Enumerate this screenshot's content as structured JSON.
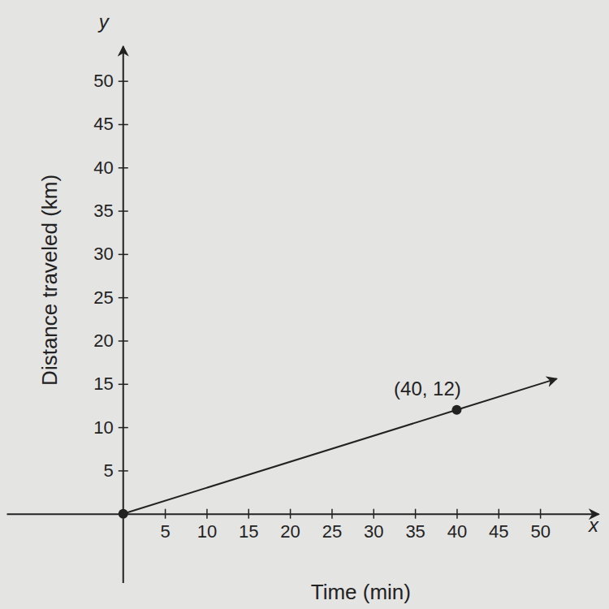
{
  "chart_data": {
    "type": "line",
    "xlabel": "Time (min)",
    "ylabel": "Distance traveled (km)",
    "axis_names": {
      "x": "x",
      "y": "y"
    },
    "xlim": [
      -14,
      57
    ],
    "ylim": [
      -8,
      54
    ],
    "xticks": [
      5,
      10,
      15,
      20,
      25,
      30,
      35,
      40,
      45,
      50
    ],
    "yticks": [
      5,
      10,
      15,
      20,
      25,
      30,
      35,
      40,
      45,
      50
    ],
    "grid": false,
    "series": [
      {
        "type": "line",
        "x": [
          0,
          40,
          52
        ],
        "values": [
          0,
          12,
          15.6
        ],
        "marker": "arrow",
        "line_style": "solid",
        "color": "#222222"
      },
      {
        "type": "scatter",
        "x": [
          0,
          40
        ],
        "values": [
          0,
          12
        ],
        "marker": "circle",
        "color": "#222222"
      }
    ],
    "annotations": [
      {
        "text": "(40, 12)",
        "x": 40,
        "y": 12
      }
    ]
  }
}
